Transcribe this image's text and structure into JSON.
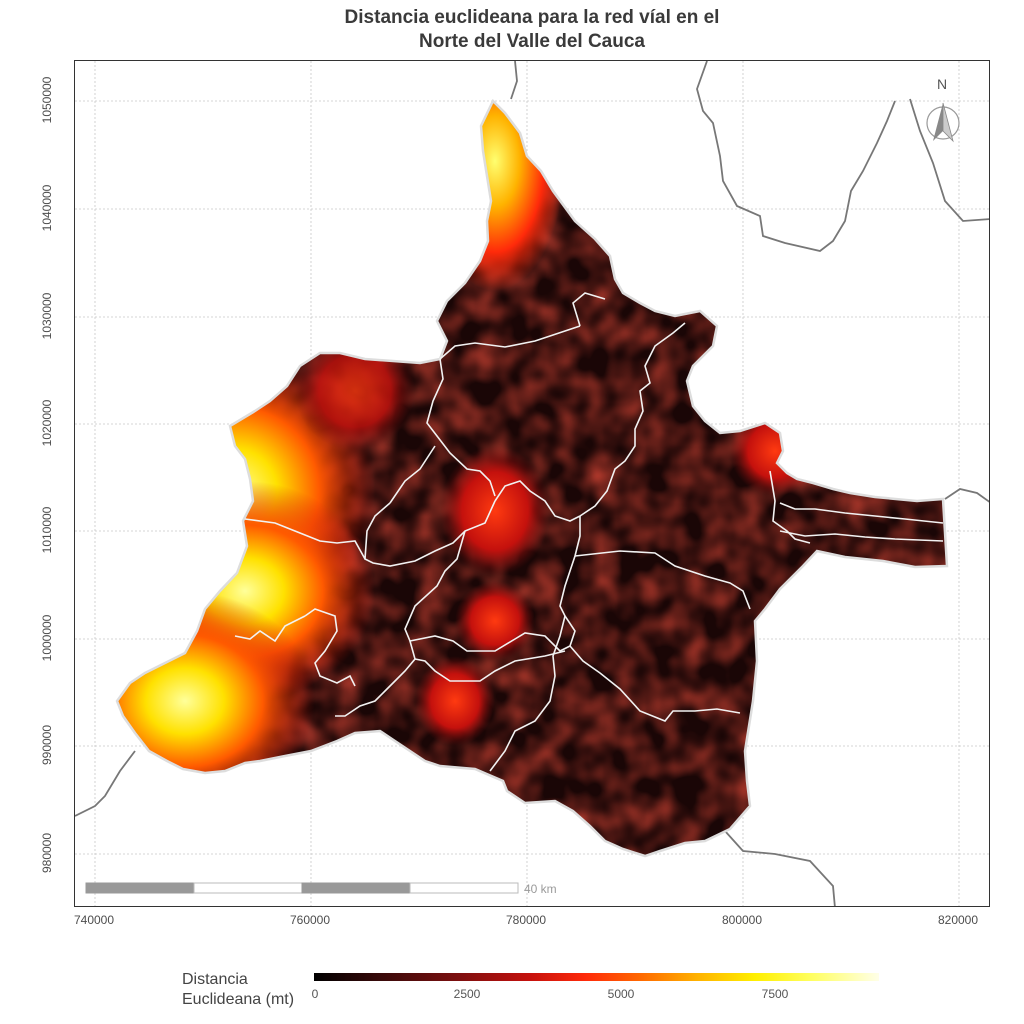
{
  "map": {
    "title_line1": "Distancia euclideana para la red víal en el",
    "title_line2": "Norte del Valle del Cauca",
    "x_ticks": [
      "740000",
      "760000",
      "780000",
      "800000",
      "820000"
    ],
    "y_ticks": [
      "980000",
      "990000",
      "1000000",
      "1010000",
      "1020000",
      "1030000",
      "1040000",
      "1050000"
    ],
    "north_arrow_label": "N",
    "scalebar_label": "40 km",
    "legend": {
      "title_line1": "Distancia",
      "title_line2": "Euclideana (mt)",
      "ticks": [
        "0",
        "2500",
        "5000",
        "7500"
      ]
    },
    "colors": {
      "low": "#000000",
      "mid_dark": "#7a0f0f",
      "mid": "#ff2a0a",
      "high": "#ffef00",
      "max": "#ffffe8",
      "boundary_internal": "#ffffff",
      "boundary_external": "#777777",
      "grid": "#bdbdbd"
    }
  }
}
